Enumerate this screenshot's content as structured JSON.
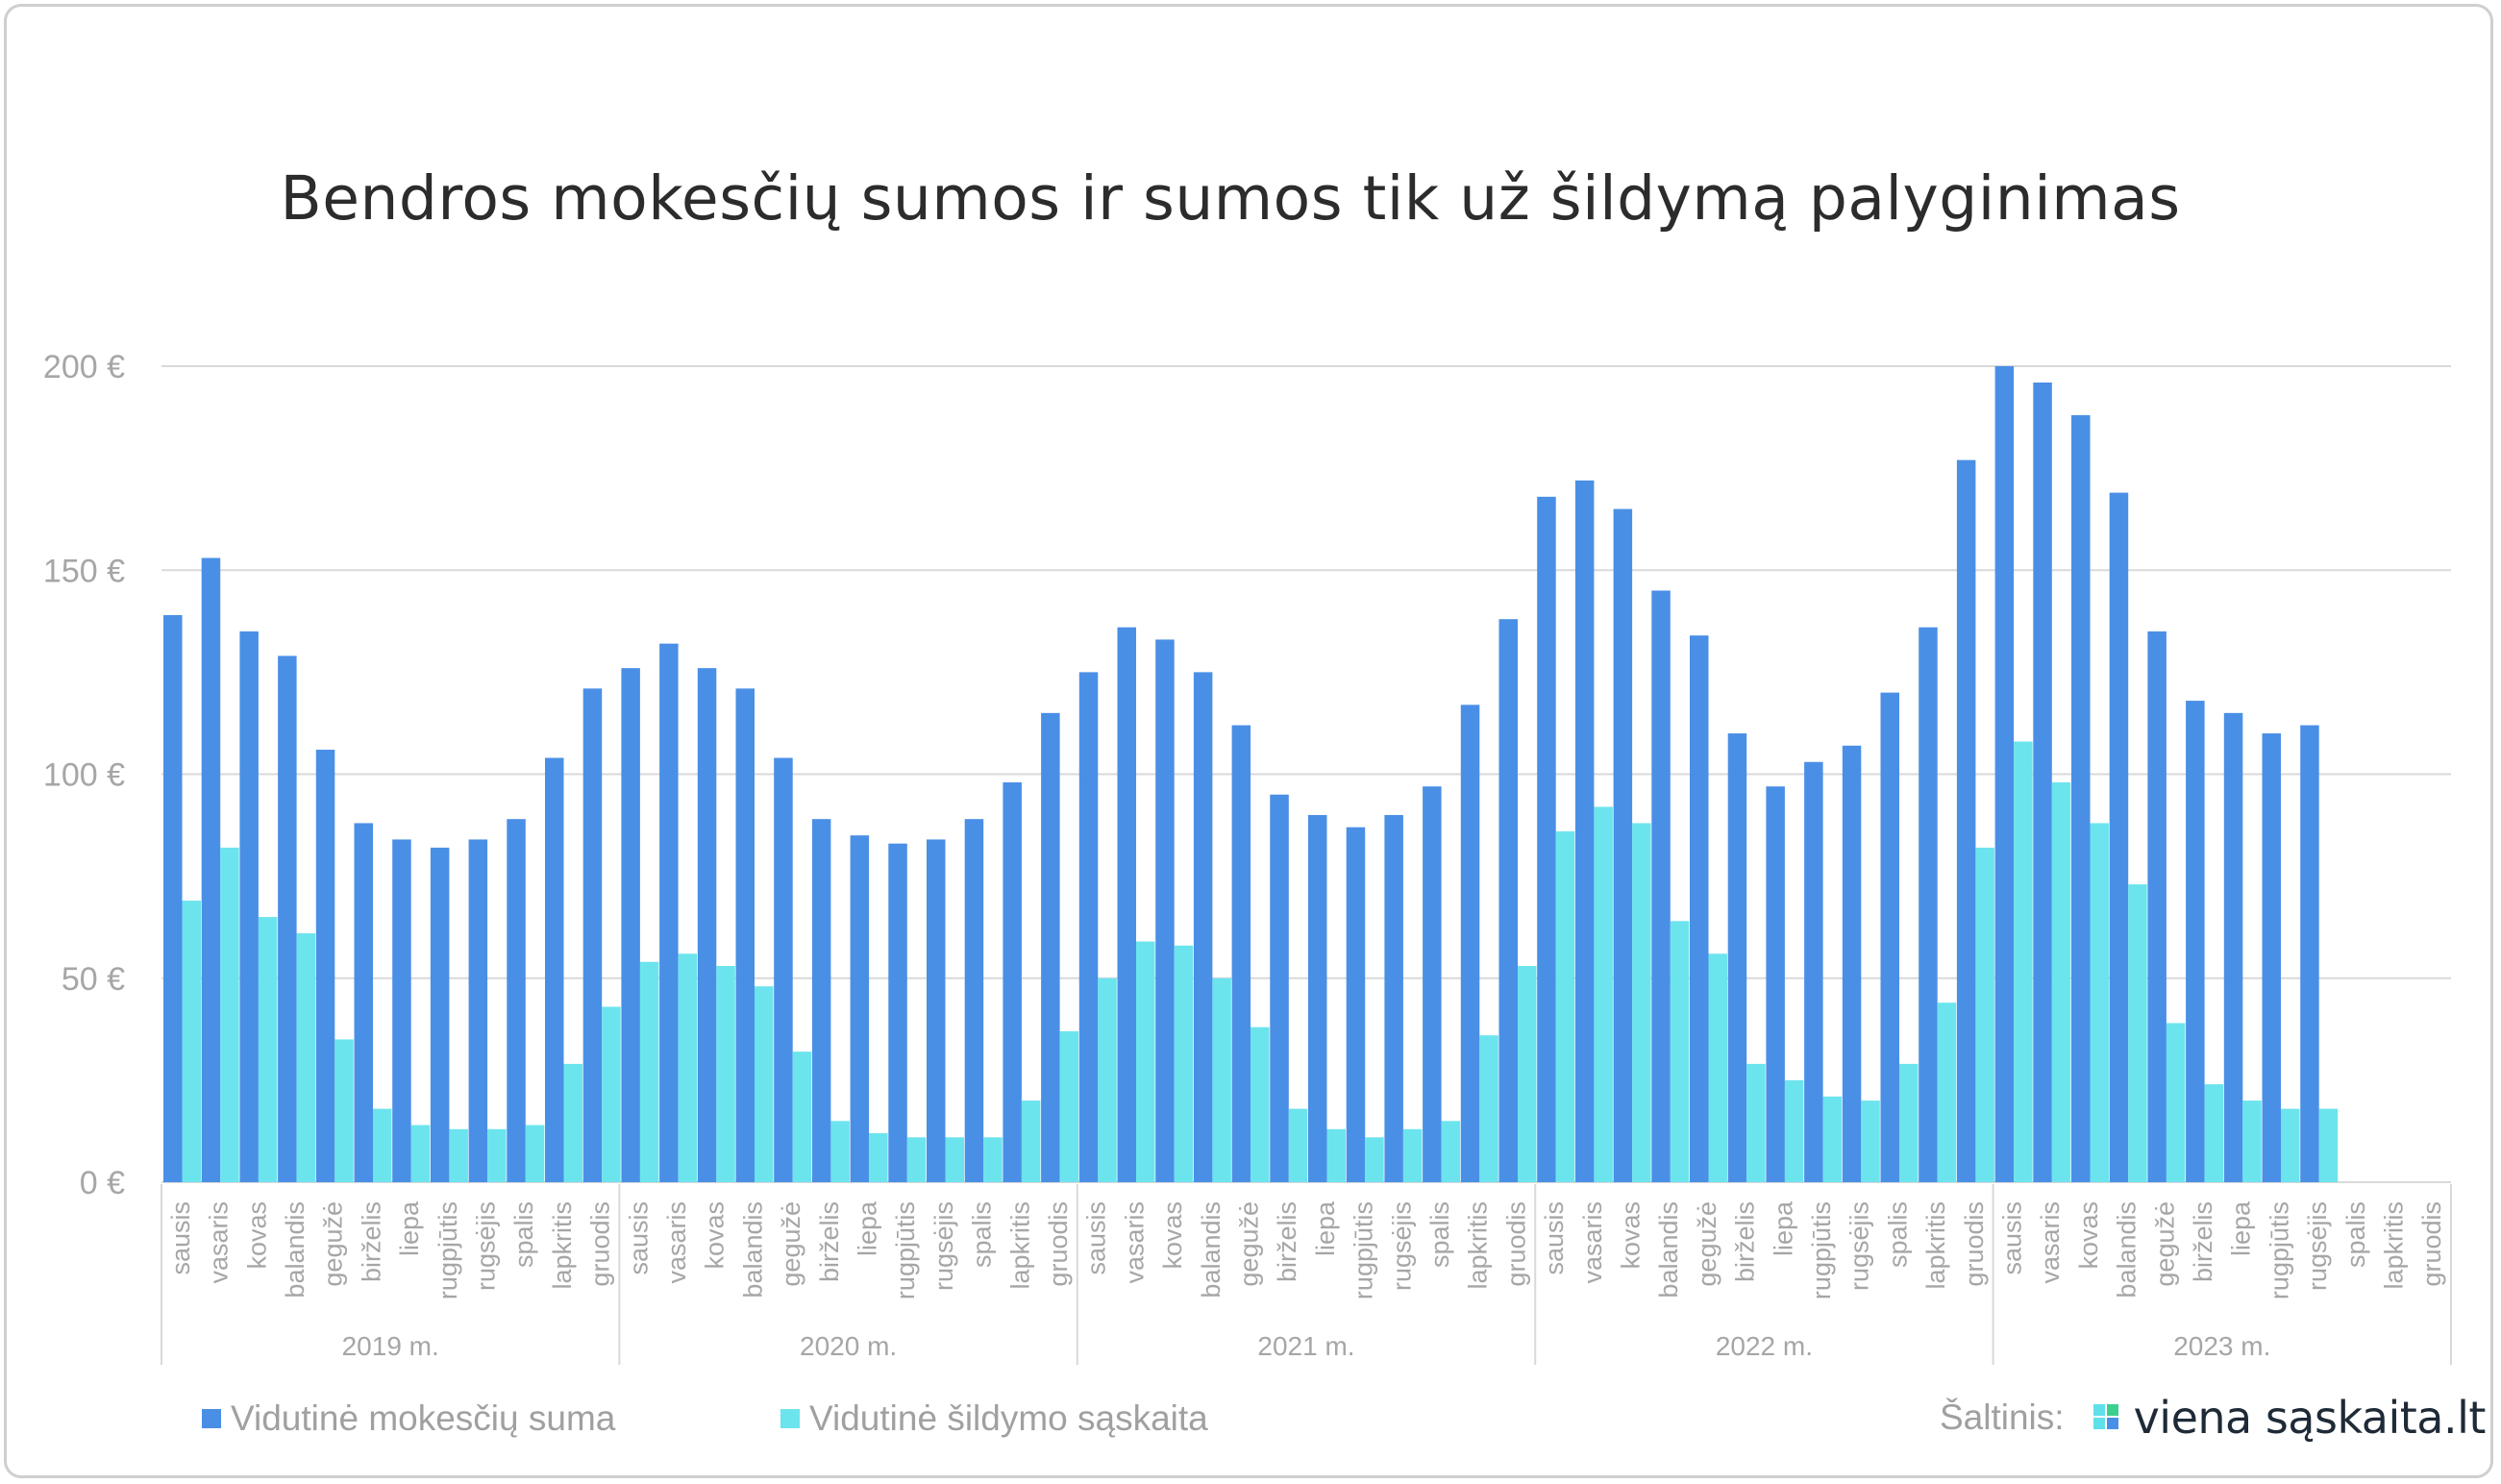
{
  "title": "Bendros mokesčių sumos ir sumos tik už šildymą palyginimas",
  "legend": {
    "series1": "Vidutinė mokesčių suma",
    "series2": "Vidutinė šildymo sąskaita"
  },
  "source": {
    "label": "Šaltinis:",
    "logo_text": "viena sąskaita.lt",
    "logo_icon": "four-squares-logo-icon"
  },
  "colors": {
    "series1": "#4a8fe6",
    "series2": "#6ce4ee",
    "grid": "#d9d9d9",
    "axis_text": "#a6a6a6",
    "logo_green": "#3ccf8e",
    "logo_cyan": "#5fe0ea",
    "logo_blue": "#4a8fe6"
  },
  "chart_data": {
    "type": "bar",
    "ylim": [
      0,
      200
    ],
    "yticks": [
      0,
      50,
      100,
      150,
      200
    ],
    "ytick_labels": [
      "0 €",
      "50 €",
      "100 €",
      "150 €",
      "200 €"
    ],
    "grid": true,
    "legend_position": "bottom-left",
    "groups": [
      "2019 m.",
      "2020 m.",
      "2021 m.",
      "2022 m.",
      "2023 m."
    ],
    "months": [
      "sausis",
      "vasaris",
      "kovas",
      "balandis",
      "gegužė",
      "birželis",
      "liepa",
      "rugpjūtis",
      "rugsėjis",
      "spalis",
      "lapkritis",
      "gruodis"
    ],
    "series": [
      {
        "name": "Vidutinė mokesčių suma",
        "values": [
          139,
          153,
          135,
          129,
          106,
          88,
          84,
          82,
          84,
          89,
          104,
          121,
          126,
          132,
          126,
          121,
          104,
          89,
          85,
          83,
          84,
          89,
          98,
          115,
          125,
          136,
          133,
          125,
          112,
          95,
          90,
          87,
          90,
          97,
          117,
          138,
          168,
          172,
          165,
          145,
          134,
          110,
          97,
          103,
          107,
          120,
          136,
          177,
          200,
          196,
          188,
          169,
          135,
          118,
          115,
          110,
          112,
          null,
          null,
          null
        ]
      },
      {
        "name": "Vidutinė šildymo sąskaita",
        "values": [
          69,
          82,
          65,
          61,
          35,
          18,
          14,
          13,
          13,
          14,
          29,
          43,
          54,
          56,
          53,
          48,
          32,
          15,
          12,
          11,
          11,
          11,
          20,
          37,
          50,
          59,
          58,
          50,
          38,
          18,
          13,
          11,
          13,
          15,
          36,
          53,
          86,
          92,
          88,
          64,
          56,
          29,
          25,
          21,
          20,
          29,
          44,
          82,
          108,
          98,
          88,
          73,
          39,
          24,
          20,
          18,
          18,
          null,
          null,
          null
        ]
      }
    ]
  }
}
